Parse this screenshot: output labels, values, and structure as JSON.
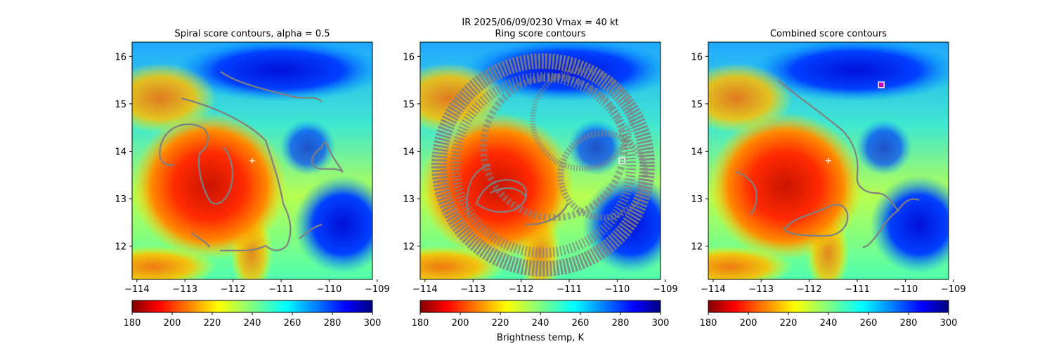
{
  "figure": {
    "suptitle_line1": "IR  2025/06/09/0230    Vmax = 40 kt"
  },
  "colorbar": {
    "label": "Brightness temp, K",
    "range": [
      180,
      300
    ],
    "ticks": [
      "180",
      "200",
      "220",
      "240",
      "260",
      "280",
      "300"
    ],
    "colormap": "jet-reversed",
    "stops": [
      "#800000",
      "#ff0000",
      "#ff8000",
      "#ffff00",
      "#80ff80",
      "#00ffff",
      "#0080ff",
      "#0000ff",
      "#000080"
    ]
  },
  "chart_data": [
    {
      "type": "heatmap",
      "title": "Spiral score contours, alpha =  0.5",
      "xlim": [
        -114.1,
        -109.1
      ],
      "ylim": [
        11.3,
        16.3
      ],
      "xticks": [
        "−114",
        "−113",
        "−112",
        "−111",
        "−110",
        "−109"
      ],
      "yticks": [
        "12",
        "13",
        "14",
        "15",
        "16"
      ],
      "contour_color": "#808080",
      "marker": {
        "symbol": "plus",
        "lon": -111.6,
        "lat": 13.8,
        "color": "#ffffff"
      }
    },
    {
      "type": "heatmap",
      "title": "Ring score contours",
      "xlim": [
        -114.1,
        -109.1
      ],
      "ylim": [
        11.3,
        16.3
      ],
      "xticks": [
        "−114",
        "−113",
        "−112",
        "−111",
        "−110",
        "−109"
      ],
      "yticks": [
        "12",
        "13",
        "14",
        "15",
        "16"
      ],
      "contour_color": "#808080",
      "marker": {
        "symbol": "square",
        "lon": -109.9,
        "lat": 13.8,
        "color": "#ffffff"
      }
    },
    {
      "type": "heatmap",
      "title": "Combined score contours",
      "xlim": [
        -114.1,
        -109.1
      ],
      "ylim": [
        11.3,
        16.3
      ],
      "xticks": [
        "−114",
        "−113",
        "−112",
        "−111",
        "−110",
        "−109"
      ],
      "yticks": [
        "12",
        "13",
        "14",
        "15",
        "16"
      ],
      "contour_color": "#808080",
      "marker": {
        "symbol": "square",
        "lon": -110.5,
        "lat": 15.4,
        "color": "#ffffff",
        "inner_color": "#c000c0"
      },
      "marker2": {
        "symbol": "plus",
        "lon": -111.6,
        "lat": 13.8,
        "color": "#ffffff"
      }
    }
  ]
}
